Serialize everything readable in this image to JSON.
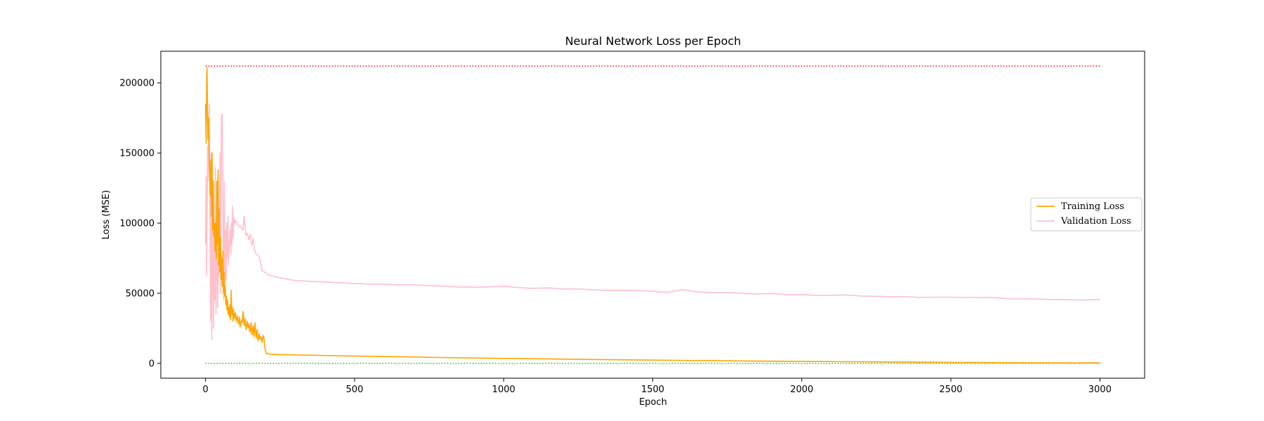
{
  "chart_data": {
    "type": "line",
    "title": "Neural Network Loss per Epoch",
    "xlabel": "Epoch",
    "ylabel": "Loss (MSE)",
    "xlim": [
      -150,
      3150
    ],
    "ylim": [
      -10600,
      222600
    ],
    "xticks": [
      0,
      500,
      1000,
      1500,
      2000,
      2500,
      3000
    ],
    "yticks": [
      0,
      50000,
      100000,
      150000,
      200000
    ],
    "grid": false,
    "legend_position": "center-right",
    "colors": {
      "training": "#ffa500",
      "validation": "#ffc0cb",
      "max_line": "#ff0000",
      "min_line": "#00cc00"
    },
    "reference_lines": [
      {
        "y": 212000,
        "x": [
          0,
          3000
        ],
        "style": "dotted",
        "color": "#ff0000"
      },
      {
        "y": 0,
        "x": [
          0,
          3000
        ],
        "style": "dotted",
        "color": "#00cc00"
      }
    ],
    "series": [
      {
        "name": "Training Loss",
        "color": "#ffa500",
        "x": [
          0,
          2,
          4,
          5,
          6,
          8,
          10,
          12,
          14,
          16,
          18,
          20,
          22,
          24,
          26,
          28,
          30,
          32,
          34,
          36,
          38,
          40,
          42,
          44,
          46,
          48,
          50,
          52,
          54,
          56,
          58,
          60,
          62,
          64,
          66,
          68,
          70,
          72,
          74,
          76,
          78,
          80,
          82,
          84,
          86,
          88,
          90,
          92,
          94,
          96,
          98,
          100,
          103,
          106,
          110,
          113,
          116,
          120,
          123,
          126,
          130,
          133,
          136,
          140,
          143,
          146,
          150,
          153,
          156,
          160,
          163,
          166,
          170,
          173,
          176,
          180,
          183,
          186,
          190,
          193,
          196,
          200,
          205,
          215,
          250,
          300,
          400,
          500,
          600,
          700,
          800,
          900,
          1000,
          1200,
          1400,
          1500,
          1600,
          1800,
          2000,
          2200,
          2400,
          2600,
          2800,
          3000
        ],
        "values": [
          185000,
          157000,
          205000,
          211000,
          190000,
          160000,
          175000,
          150000,
          135000,
          120000,
          145000,
          105000,
          150000,
          95000,
          130000,
          90000,
          100000,
          80000,
          100000,
          75000,
          130000,
          85000,
          138000,
          70000,
          110000,
          65000,
          90000,
          60000,
          75000,
          55000,
          80000,
          50000,
          65000,
          48000,
          55000,
          42000,
          48000,
          38000,
          45000,
          35000,
          40000,
          33000,
          42000,
          31000,
          52000,
          35000,
          40000,
          30000,
          38000,
          32000,
          35000,
          36000,
          30000,
          34000,
          28000,
          33000,
          26000,
          31000,
          29000,
          37000,
          27000,
          32000,
          24000,
          30000,
          25000,
          28000,
          22000,
          29000,
          20000,
          27000,
          19000,
          29000,
          18000,
          24000,
          16000,
          21000,
          17000,
          19000,
          15000,
          20000,
          18000,
          10000,
          7000,
          6500,
          6200,
          6000,
          5600,
          5200,
          4800,
          4500,
          4100,
          3800,
          3500,
          3000,
          2500,
          2300,
          2100,
          1700,
          1400,
          1100,
          800,
          600,
          400,
          300
        ]
      },
      {
        "name": "Validation Loss",
        "color": "#ffc0cb",
        "x": [
          0,
          2,
          4,
          5,
          7,
          9,
          11,
          13,
          15,
          17,
          19,
          21,
          23,
          25,
          27,
          29,
          31,
          33,
          35,
          37,
          39,
          41,
          43,
          45,
          47,
          49,
          51,
          53,
          55,
          57,
          59,
          61,
          63,
          65,
          67,
          69,
          71,
          73,
          75,
          77,
          79,
          81,
          83,
          85,
          87,
          89,
          91,
          93,
          95,
          97,
          100,
          110,
          120,
          125,
          130,
          135,
          140,
          145,
          150,
          155,
          160,
          165,
          170,
          180,
          190,
          200,
          210,
          250,
          300,
          350,
          400,
          450,
          500,
          550,
          600,
          650,
          700,
          750,
          800,
          850,
          900,
          950,
          1000,
          1050,
          1100,
          1150,
          1200,
          1250,
          1300,
          1350,
          1400,
          1450,
          1500,
          1550,
          1600,
          1650,
          1700,
          1750,
          1800,
          1850,
          1900,
          1950,
          2000,
          2050,
          2100,
          2150,
          2200,
          2250,
          2300,
          2350,
          2400,
          2450,
          2500,
          2550,
          2600,
          2650,
          2700,
          2750,
          2800,
          2850,
          2900,
          2950,
          3000
        ],
        "values": [
          85000,
          133000,
          63000,
          100000,
          155000,
          130000,
          165000,
          185000,
          100000,
          30000,
          150000,
          17000,
          120000,
          65000,
          25000,
          100000,
          45000,
          140000,
          35000,
          70000,
          110000,
          40000,
          95000,
          62000,
          120000,
          150000,
          50000,
          175000,
          178000,
          160000,
          90000,
          45000,
          130000,
          55000,
          95000,
          60000,
          100000,
          75000,
          105000,
          70000,
          80000,
          88000,
          95000,
          78000,
          100000,
          85000,
          112000,
          90000,
          104000,
          99000,
          102000,
          98000,
          97000,
          95000,
          105000,
          91000,
          93000,
          88000,
          92000,
          84000,
          89000,
          80000,
          78000,
          76000,
          66000,
          65000,
          63000,
          61000,
          59000,
          58500,
          58000,
          57500,
          57000,
          56500,
          56500,
          56000,
          56000,
          55500,
          55000,
          54500,
          54300,
          54500,
          55000,
          54000,
          53500,
          53800,
          53000,
          53000,
          52500,
          52000,
          52000,
          51800,
          51500,
          50500,
          52500,
          51000,
          50500,
          50500,
          50000,
          49500,
          49800,
          49000,
          49000,
          48500,
          48500,
          48800,
          48000,
          47800,
          47500,
          47500,
          47000,
          47200,
          47200,
          47000,
          47000,
          46800,
          46000,
          46000,
          45800,
          45500,
          45300,
          45200,
          45500
        ]
      }
    ]
  }
}
